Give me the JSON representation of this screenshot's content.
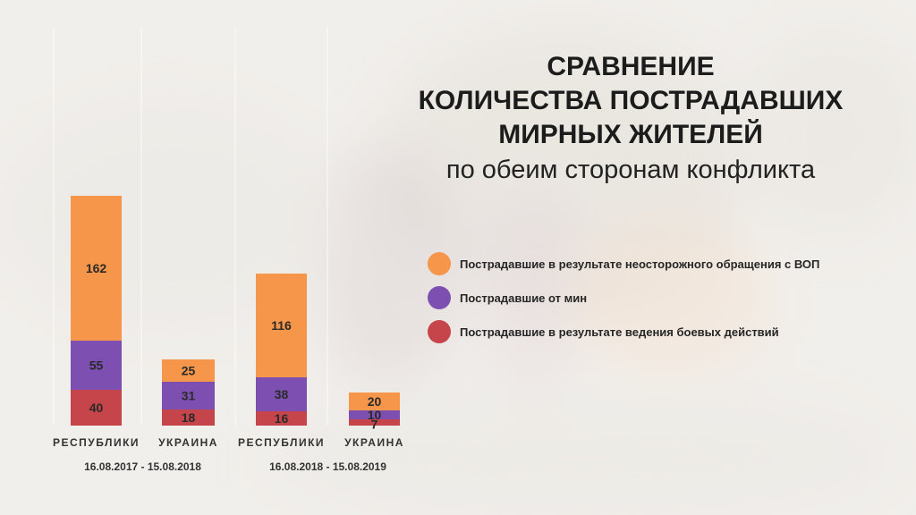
{
  "title": {
    "line1": "СРАВНЕНИЕ",
    "line2": "КОЛИЧЕСТВА ПОСТРАДАВШИХ",
    "line3": "МИРНЫХ ЖИТЕЛЕЙ",
    "subtitle": "по обеим сторонам конфликта"
  },
  "legend": [
    {
      "label": "Пострадавшие в результате неосторожного обращения с ВОП",
      "color": "#f5964b"
    },
    {
      "label": "Пострадавшие от мин",
      "color": "#7d4fb1"
    },
    {
      "label": "Пострадавшие в результате ведения боевых действий",
      "color": "#c5454a"
    }
  ],
  "chart_data": {
    "type": "bar",
    "stacked": true,
    "categories": [
      "РЕСПУБЛИКИ",
      "УКРАИНА",
      "РЕСПУБЛИКИ",
      "УКРАИНА"
    ],
    "groups": [
      {
        "label": "16.08.2017 - 15.08.2018",
        "categories": [
          0,
          1
        ]
      },
      {
        "label": "16.08.2018 - 15.08.2019",
        "categories": [
          2,
          3
        ]
      }
    ],
    "series": [
      {
        "name": "Пострадавшие в результате ведения боевых действий",
        "color": "#c5454a",
        "values": [
          40,
          18,
          16,
          7
        ]
      },
      {
        "name": "Пострадавшие от мин",
        "color": "#7d4fb1",
        "values": [
          55,
          31,
          38,
          10
        ]
      },
      {
        "name": "Пострадавшие в результате неосторожного обращения с ВОП",
        "color": "#f5964b",
        "values": [
          162,
          25,
          116,
          20
        ]
      }
    ],
    "legend_position": "right",
    "grid": false
  }
}
